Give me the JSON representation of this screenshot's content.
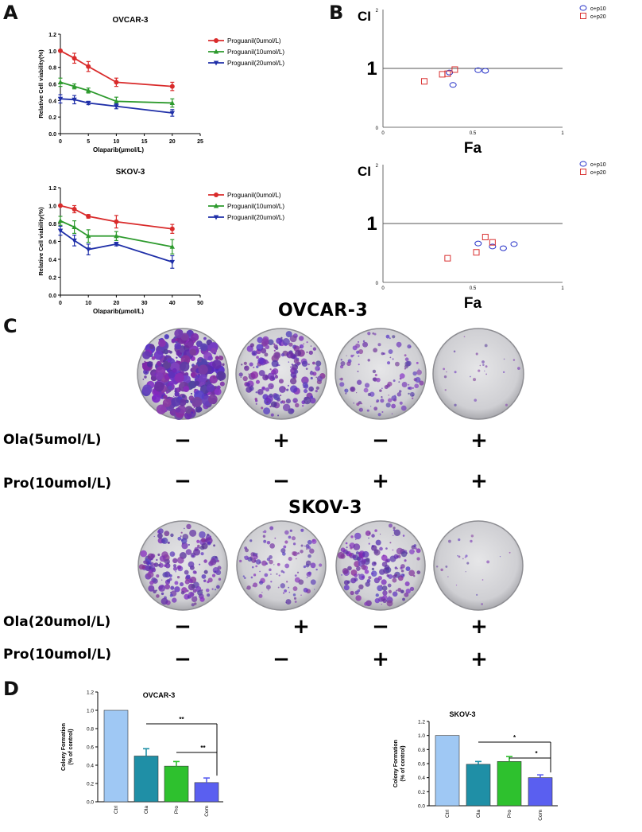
{
  "panels": {
    "a": "A",
    "b": "B",
    "c": "C",
    "d": "D"
  },
  "colors": {
    "red": "#d92b2b",
    "green": "#2d9a2d",
    "blue": "#1f2fa8",
    "ctrl": "#9fc8f4",
    "ola": "#1f8fa6",
    "pro": "#2ec12e",
    "com": "#5a5ff0",
    "ci_p10": "#2833c8",
    "ci_p20": "#d93030"
  },
  "chart_data": [
    {
      "id": "a_ovcar3",
      "type": "line",
      "title": "OVCAR-3",
      "xlabel": "Olaparib(μmol/L)",
      "ylabel": "Relative Cell viability(%)",
      "xlim": [
        0,
        25
      ],
      "ylim": [
        0,
        1.2
      ],
      "xticks": [
        "0",
        "5",
        "10",
        "15",
        "20",
        "25"
      ],
      "xtick_values": [
        0,
        5,
        10,
        15,
        20,
        25
      ],
      "yticks": [
        "0.0",
        "0.2",
        "0.4",
        "0.6",
        "0.8",
        "1.0",
        "1.2"
      ],
      "ytick_values": [
        0,
        0.2,
        0.4,
        0.6,
        0.8,
        1.0,
        1.2
      ],
      "x": [
        0,
        2.5,
        5,
        10,
        20
      ],
      "series": [
        {
          "name": "Proguanil(0umol/L)",
          "values": [
            1.0,
            0.91,
            0.81,
            0.62,
            0.57
          ],
          "err": [
            0.0,
            0.06,
            0.06,
            0.05,
            0.05
          ]
        },
        {
          "name": "Proguanil(10umol/L)",
          "values": [
            0.62,
            0.57,
            0.52,
            0.39,
            0.37
          ],
          "err": [
            0.05,
            0.03,
            0.03,
            0.05,
            0.05
          ]
        },
        {
          "name": "Proguanil(20umol/L)",
          "values": [
            0.42,
            0.41,
            0.37,
            0.33,
            0.25
          ],
          "err": [
            0.05,
            0.05,
            0.02,
            0.03,
            0.04
          ]
        }
      ]
    },
    {
      "id": "a_skov3",
      "type": "line",
      "title": "SKOV-3",
      "xlabel": "Olaparib(μmol/L)",
      "ylabel": "Relative Cell viability(%)",
      "xlim": [
        0,
        50
      ],
      "ylim": [
        0,
        1.2
      ],
      "xticks": [
        "0",
        "10",
        "20",
        "30",
        "40",
        "50"
      ],
      "xtick_values": [
        0,
        10,
        20,
        30,
        40,
        50
      ],
      "yticks": [
        "0.0",
        "0.2",
        "0.4",
        "0.6",
        "0.8",
        "1.0",
        "1.2"
      ],
      "ytick_values": [
        0,
        0.2,
        0.4,
        0.6,
        0.8,
        1.0,
        1.2
      ],
      "x": [
        0,
        5,
        10,
        20,
        40
      ],
      "series": [
        {
          "name": "Proguanil(0umol/L)",
          "values": [
            1.0,
            0.96,
            0.88,
            0.82,
            0.74
          ],
          "err": [
            0.0,
            0.04,
            0.02,
            0.07,
            0.05
          ]
        },
        {
          "name": "Proguanil(10umol/L)",
          "values": [
            0.83,
            0.76,
            0.66,
            0.66,
            0.54
          ],
          "err": [
            0.05,
            0.07,
            0.07,
            0.05,
            0.08
          ]
        },
        {
          "name": "Proguanil(20umol/L)",
          "values": [
            0.72,
            0.61,
            0.51,
            0.57,
            0.37
          ],
          "err": [
            0.05,
            0.06,
            0.06,
            0.02,
            0.07
          ]
        }
      ]
    },
    {
      "id": "b_top",
      "type": "scatter",
      "ylabel": "CI",
      "xlabel": "Fa",
      "xlim": [
        0,
        1
      ],
      "ylim": [
        0,
        2
      ],
      "ref_line": 1,
      "xticks": [
        "0",
        "0.5",
        "1"
      ],
      "xtick_values": [
        0,
        0.5,
        1
      ],
      "yticks": [
        "0",
        "1",
        "2"
      ],
      "ytick_values": [
        0,
        1,
        2
      ],
      "series": [
        {
          "name": "o+p10",
          "marker": "circle",
          "x": [
            0.37,
            0.39,
            0.53,
            0.57
          ],
          "y": [
            0.93,
            0.72,
            0.97,
            0.96
          ]
        },
        {
          "name": "o+p20",
          "marker": "square",
          "x": [
            0.23,
            0.33,
            0.36,
            0.4
          ],
          "y": [
            0.78,
            0.9,
            0.91,
            0.98
          ]
        }
      ]
    },
    {
      "id": "b_bottom",
      "type": "scatter",
      "ylabel": "CI",
      "xlabel": "Fa",
      "xlim": [
        0,
        1
      ],
      "ylim": [
        0,
        2
      ],
      "ref_line": 1,
      "xticks": [
        "0",
        "0.5",
        "1"
      ],
      "xtick_values": [
        0,
        0.5,
        1
      ],
      "yticks": [
        "0",
        "1",
        "2"
      ],
      "ytick_values": [
        0,
        1,
        2
      ],
      "series": [
        {
          "name": "o+p10",
          "marker": "circle",
          "x": [
            0.53,
            0.61,
            0.67,
            0.73
          ],
          "y": [
            0.66,
            0.61,
            0.58,
            0.65
          ]
        },
        {
          "name": "o+p20",
          "marker": "square",
          "x": [
            0.36,
            0.52,
            0.57,
            0.61
          ],
          "y": [
            0.41,
            0.51,
            0.77,
            0.68
          ]
        }
      ]
    },
    {
      "id": "d_ovcar3",
      "type": "bar",
      "title": "OVCAR-3",
      "ylabel_line1": "Colony Formation",
      "ylabel_line2": "(% of control)",
      "categories": [
        "Ctrl",
        "Ola",
        "Pro",
        "Com"
      ],
      "values": [
        1.0,
        0.5,
        0.39,
        0.21
      ],
      "err": [
        0.0,
        0.08,
        0.05,
        0.05
      ],
      "ylim": [
        0,
        1.2
      ],
      "yticks": [
        "0.0",
        "0.2",
        "0.4",
        "0.6",
        "0.8",
        "1.0",
        "1.2"
      ],
      "ytick_values": [
        0,
        0.2,
        0.4,
        0.6,
        0.8,
        1.0,
        1.2
      ],
      "significance": [
        {
          "from": "Ola",
          "to": "Com",
          "label": "**"
        },
        {
          "from": "Pro",
          "to": "Com",
          "label": "**"
        }
      ]
    },
    {
      "id": "d_skov3",
      "type": "bar",
      "title": "SKOV-3",
      "ylabel_line1": "Colony Formation",
      "ylabel_line2": "(% of control)",
      "categories": [
        "Ctrl",
        "Ola",
        "Pro",
        "Com"
      ],
      "values": [
        1.0,
        0.59,
        0.63,
        0.4
      ],
      "err": [
        0.0,
        0.04,
        0.07,
        0.04
      ],
      "ylim": [
        0,
        1.2
      ],
      "yticks": [
        "0.0",
        "0.2",
        "0.4",
        "0.6",
        "0.8",
        "1.0",
        "1.2"
      ],
      "ytick_values": [
        0,
        0.2,
        0.4,
        0.6,
        0.8,
        1.0,
        1.2
      ],
      "significance": [
        {
          "from": "Ola",
          "to": "Com",
          "label": "*"
        },
        {
          "from": "Pro",
          "to": "Com",
          "label": "*"
        }
      ]
    }
  ],
  "panel_c": {
    "ovcar3_title": "OVCAR-3",
    "skov3_title": "SKOV-3",
    "ovcar3_rows": [
      {
        "label": "Ola(5umol/L)",
        "signs": [
          "−",
          "+",
          "−",
          "+"
        ]
      },
      {
        "label": "Pro(10umol/L)",
        "signs": [
          "−",
          "−",
          "+",
          "+"
        ]
      }
    ],
    "skov3_rows": [
      {
        "label": "Ola(20umol/L)",
        "signs": [
          "−",
          "+",
          "−",
          "+"
        ]
      },
      {
        "label": "Pro(10umol/L)",
        "signs": [
          "−",
          "−",
          "+",
          "+"
        ]
      }
    ],
    "ovcar3_density": [
      0.95,
      0.6,
      0.35,
      0.06
    ],
    "skov3_density": [
      0.55,
      0.35,
      0.5,
      0.05
    ]
  }
}
